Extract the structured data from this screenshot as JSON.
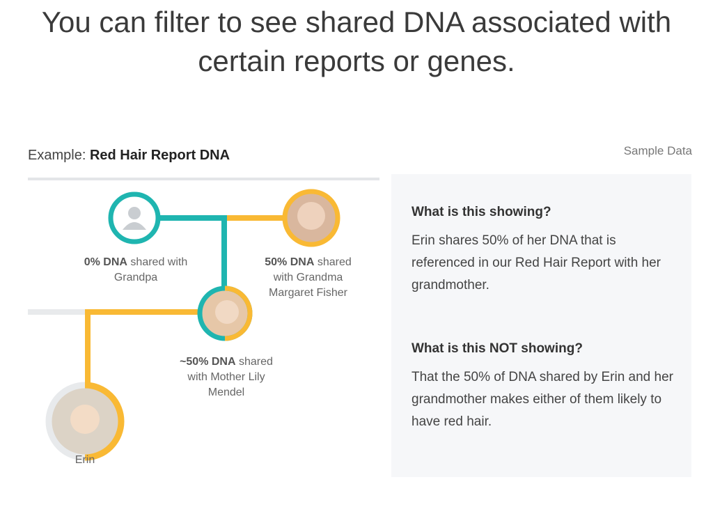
{
  "header": {
    "title_lines": [
      "You can filter to see shared DNA associated with",
      "certain reports or genes."
    ]
  },
  "example": {
    "prefix": "Example:",
    "report": "Red Hair Report DNA",
    "note": "Sample Data"
  },
  "nodes": [
    {
      "share": "0% DNA",
      "label": "shared with Grandpa"
    },
    {
      "share": "50% DNA",
      "label": "shared with Grandma Margaret Fisher"
    },
    {
      "share": "~50% DNA",
      "label": "shared with Mother Lily Mendel"
    },
    {
      "label": "Erin"
    }
  ],
  "panel": [
    {
      "heading": "What is this showing?",
      "text": "Erin shares 50% of her DNA that is referenced in our Red Hair Report with her grandmother."
    },
    {
      "heading": "What is this NOT showing?",
      "text": "That the 50% of DNA shared by Erin and her grandmother makes either of them likely to have red hair."
    }
  ]
}
